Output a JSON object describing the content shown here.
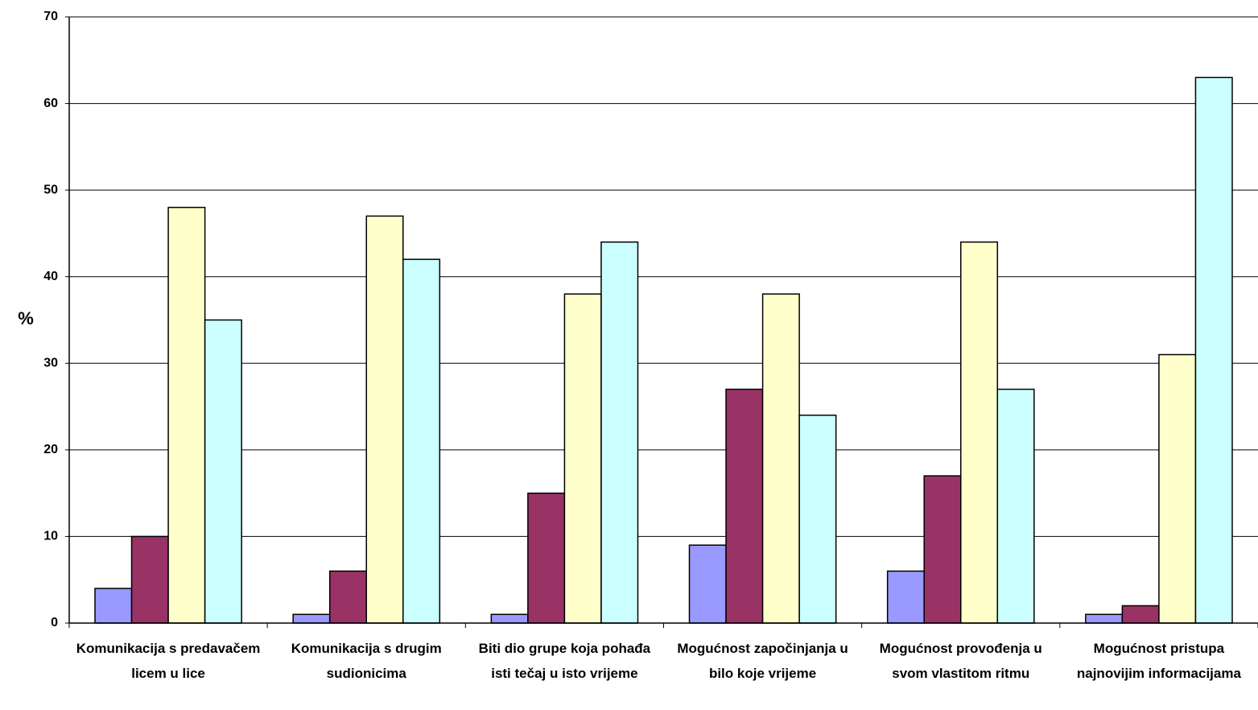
{
  "chart_data": {
    "type": "bar",
    "y_label": "%",
    "categories": [
      "Komunikacija s predavačem licem u lice",
      "Komunikacija s drugim sudionicima",
      "Biti dio grupe koja pohađa isti tečaj u isto vrijeme",
      "Mogućnost započinjanja u bilo koje vrijeme",
      "Mogućnost provođenja u svom vlastitom ritmu",
      "Mogućnost pristupa najnovijim informacijama"
    ],
    "series": [
      {
        "color": "#9999ff",
        "values": [
          4,
          1,
          1,
          9,
          6,
          1
        ]
      },
      {
        "color": "#993366",
        "values": [
          10,
          6,
          15,
          27,
          17,
          2
        ]
      },
      {
        "color": "#ffffcc",
        "values": [
          48,
          47,
          38,
          38,
          44,
          31
        ]
      },
      {
        "color": "#ccffff",
        "values": [
          35,
          42,
          44,
          24,
          27,
          63
        ]
      }
    ],
    "ylim": [
      0,
      70
    ],
    "yticks": [
      0,
      10,
      20,
      30,
      40,
      50,
      60,
      70
    ],
    "grid": true
  }
}
